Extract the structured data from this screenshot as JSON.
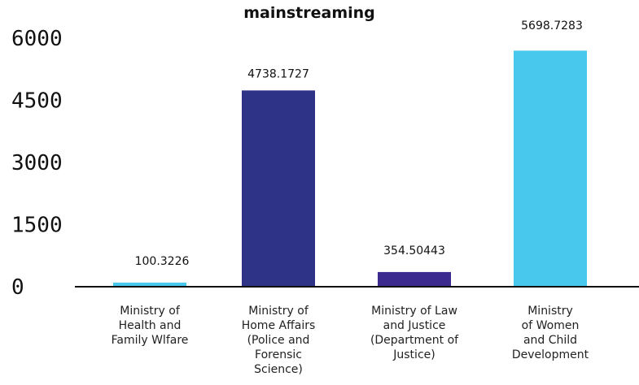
{
  "chart_data": {
    "type": "bar",
    "title": "mainstreaming",
    "xlabel": "",
    "ylabel": "",
    "ylim": [
      0,
      6000
    ],
    "yticks": [
      "0",
      "1500",
      "3000",
      "4500",
      "6000"
    ],
    "categories": [
      [
        "Ministry of",
        "Health and",
        "Family Wlfare"
      ],
      [
        "Ministry of",
        "Home Affairs",
        "(Police and",
        "Forensic",
        "Science)"
      ],
      [
        "Ministry of Law",
        "and Justice",
        "(Department of",
        "Justice)"
      ],
      [
        "Ministry",
        "of Women",
        "and Child",
        "Development"
      ]
    ],
    "values": [
      100.3226,
      4738.1727,
      354.50443,
      5698.7283
    ],
    "data_labels": [
      "100.3226",
      "4738.1727",
      "354.50443",
      "5698.7283"
    ],
    "colors": [
      "#49c8ee",
      "#2e3388",
      "#3c2a8e",
      "#49c8ee"
    ],
    "grid": false,
    "legend": "none"
  }
}
